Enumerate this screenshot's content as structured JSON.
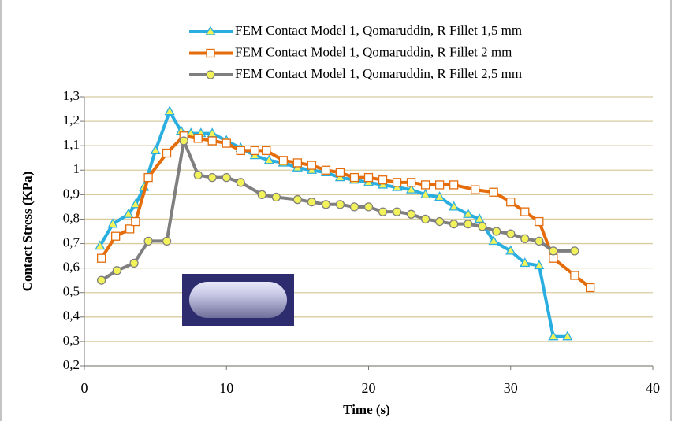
{
  "chart_data": {
    "type": "line",
    "xlabel": "Time (s)",
    "ylabel": "Contact Stress (KPa)",
    "xlim": [
      0,
      40
    ],
    "xticks": [
      0,
      10,
      20,
      30,
      40
    ],
    "ylim": [
      0.2,
      1.3
    ],
    "yticks": [
      {
        "value": 0.2,
        "label": "0,2"
      },
      {
        "value": 0.3,
        "label": "0,3"
      },
      {
        "value": 0.4,
        "label": "0,4"
      },
      {
        "value": 0.5,
        "label": "0,5"
      },
      {
        "value": 0.6,
        "label": "0,6"
      },
      {
        "value": 0.7,
        "label": "0,7"
      },
      {
        "value": 0.8,
        "label": "0,8"
      },
      {
        "value": 0.9,
        "label": "0,9"
      },
      {
        "value": 1,
        "label": "1"
      },
      {
        "value": 1.1,
        "label": "1,1"
      },
      {
        "value": 1.2,
        "label": "1,2"
      },
      {
        "value": 1.3,
        "label": "1,3"
      }
    ],
    "grid": true,
    "series": [
      {
        "name": "FEM Contact Model 1, Qomaruddin, R Fillet 1,5 mm",
        "color": "#2aaee0",
        "marker": "triangle",
        "marker_fill": "#f2f25a",
        "x": [
          1.1,
          2,
          3.1,
          3.6,
          4.2,
          5,
          6,
          6.8,
          7.5,
          8.2,
          9,
          10,
          11,
          12,
          13,
          14,
          15,
          16,
          17,
          18,
          19,
          20,
          21,
          22,
          23,
          24,
          25,
          26,
          27,
          27.8,
          28.8,
          30,
          31,
          32,
          33,
          34
        ],
        "values": [
          0.69,
          0.78,
          0.82,
          0.86,
          0.93,
          1.08,
          1.24,
          1.16,
          1.15,
          1.15,
          1.15,
          1.12,
          1.09,
          1.06,
          1.04,
          1.03,
          1.01,
          1.0,
          0.99,
          0.97,
          0.96,
          0.95,
          0.94,
          0.93,
          0.92,
          0.9,
          0.89,
          0.85,
          0.82,
          0.8,
          0.71,
          0.67,
          0.62,
          0.61,
          0.32,
          0.32
        ]
      },
      {
        "name": "FEM Contact Model 1, Qomaruddin, R Fillet 2 mm",
        "color": "#e46c0a",
        "marker": "square",
        "marker_fill": "#ffffff",
        "x": [
          1.2,
          2.2,
          3.2,
          3.6,
          4.5,
          5.8,
          7,
          8,
          9,
          10,
          11,
          12,
          12.8,
          14,
          15,
          16,
          17,
          18,
          19,
          20,
          21,
          22,
          23,
          24,
          25,
          26,
          27.5,
          28.8,
          30,
          31,
          32,
          33,
          34.5,
          35.6
        ],
        "values": [
          0.64,
          0.73,
          0.76,
          0.79,
          0.97,
          1.07,
          1.14,
          1.13,
          1.12,
          1.11,
          1.08,
          1.08,
          1.08,
          1.04,
          1.03,
          1.02,
          1.0,
          0.99,
          0.97,
          0.97,
          0.96,
          0.95,
          0.95,
          0.94,
          0.94,
          0.94,
          0.92,
          0.91,
          0.87,
          0.83,
          0.79,
          0.64,
          0.57,
          0.52
        ]
      },
      {
        "name": "FEM Contact Model 1, Qomaruddin, R Fillet 2,5 mm",
        "color": "#7f7f7f",
        "marker": "circle",
        "marker_fill": "#f2f25a",
        "x": [
          1.2,
          2.3,
          3.5,
          4.5,
          5.8,
          7,
          8,
          9,
          10,
          11,
          12.5,
          13.5,
          15,
          16,
          17,
          18,
          19,
          20,
          21,
          22,
          23,
          24,
          25,
          26,
          27,
          28,
          29,
          30,
          31,
          32,
          33,
          34.5
        ],
        "values": [
          0.55,
          0.59,
          0.62,
          0.71,
          0.71,
          1.12,
          0.98,
          0.97,
          0.97,
          0.95,
          0.9,
          0.89,
          0.88,
          0.87,
          0.86,
          0.86,
          0.85,
          0.85,
          0.83,
          0.83,
          0.82,
          0.8,
          0.79,
          0.78,
          0.78,
          0.77,
          0.75,
          0.74,
          0.72,
          0.71,
          0.67,
          0.67
        ]
      }
    ]
  }
}
